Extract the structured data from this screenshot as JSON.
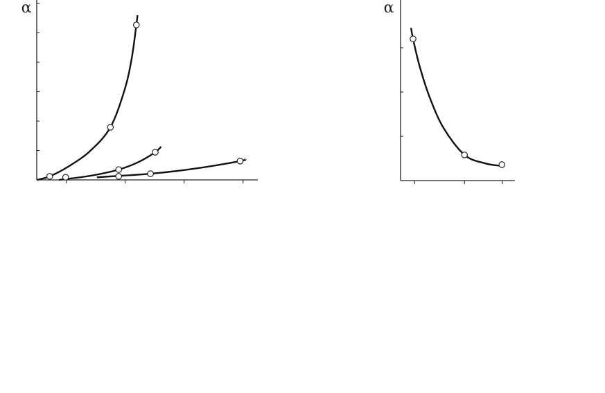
{
  "chart_data": [
    {
      "type": "line",
      "y_label": "α",
      "xlim": [
        0,
        3.75
      ],
      "ylim": [
        0,
        6
      ],
      "xticks": [
        0.5,
        1.5,
        2.5,
        3.5
      ],
      "yticks": [
        1,
        2,
        3,
        4,
        5,
        6
      ],
      "series": [
        {
          "color": "#111111",
          "markers": false,
          "x": [
            0,
            0.22,
            0.55,
            0.91,
            1.25,
            1.49,
            1.61,
            1.69,
            1.71
          ],
          "values": [
            0,
            0.12,
            0.47,
            0.99,
            1.79,
            3.06,
            4.12,
            5.27,
            5.6
          ]
        },
        {
          "color": "#111111",
          "markers": false,
          "x": [
            0.38,
            0.91,
            1.39,
            1.73,
            2.01,
            2.11
          ],
          "values": [
            0,
            0.14,
            0.35,
            0.61,
            0.94,
            1.13
          ]
        },
        {
          "color": "#111111",
          "markers": false,
          "x": [
            1.02,
            1.93,
            2.67,
            3.45,
            3.54
          ],
          "values": [
            0.09,
            0.21,
            0.38,
            0.64,
            0.71
          ]
        },
        {
          "color": "#222222",
          "markers": true,
          "x": [
            0.22,
            1.25,
            1.69
          ],
          "values": [
            0.12,
            1.79,
            5.27
          ]
        },
        {
          "color": "#222222",
          "markers": true,
          "x": [
            0.49,
            1.39,
            2.01
          ],
          "values": [
            0.09,
            0.35,
            0.94
          ]
        },
        {
          "color": "#222222",
          "markers": true,
          "x": [
            1.39,
            1.93,
            3.45
          ],
          "values": [
            0.12,
            0.21,
            0.64
          ]
        }
      ]
    },
    {
      "type": "line",
      "y_label": "α",
      "xlim": [
        0,
        2.29
      ],
      "ylim": [
        0,
        4
      ],
      "xticks": [
        0.28,
        1.28,
        2.04
      ],
      "yticks": [
        1,
        2,
        3
      ],
      "series": [
        {
          "color": "#111111",
          "markers": false,
          "x": [
            0.21,
            0.25,
            0.38,
            0.58,
            0.86,
            1.28,
            1.69,
            2.03
          ],
          "values": [
            3.45,
            3.2,
            2.59,
            1.89,
            1.19,
            0.58,
            0.39,
            0.33
          ]
        },
        {
          "color": "#222222",
          "markers": true,
          "x": [
            0.25,
            1.28,
            2.03
          ],
          "values": [
            3.2,
            0.58,
            0.36
          ]
        }
      ]
    }
  ]
}
